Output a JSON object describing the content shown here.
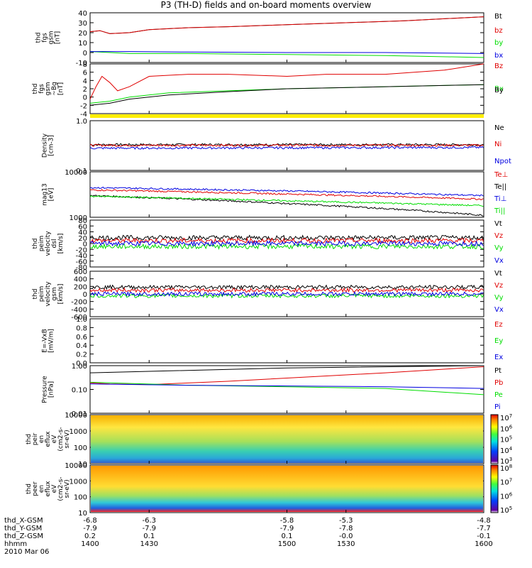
{
  "title": "P3 (TH-D) fields and on-board moments overview",
  "colors": {
    "black": "#000000",
    "red": "#e00000",
    "green": "#00dd00",
    "blue": "#0000e0",
    "yellow": "#ffee00"
  },
  "chart_data": [
    {
      "type": "line",
      "panel": "fgs",
      "ylabel": [
        "thd",
        "fgs",
        "gsm",
        "[nT]"
      ],
      "ylim": [
        -10,
        40
      ],
      "yticks": [
        "40",
        "30",
        "20",
        "10",
        "0",
        "-10"
      ],
      "series": [
        {
          "name": "Bt",
          "color": "#000000",
          "x": [
            1400,
            1405,
            1410,
            1420,
            1430,
            1450,
            1470,
            1500,
            1530,
            1560,
            1600
          ],
          "y": [
            21,
            22,
            19,
            20,
            23,
            25,
            26,
            28,
            30,
            32,
            36
          ]
        },
        {
          "name": "bz",
          "color": "#e00000",
          "x": [
            1400,
            1405,
            1410,
            1420,
            1430,
            1450,
            1470,
            1500,
            1530,
            1560,
            1600
          ],
          "y": [
            21,
            22,
            19,
            20,
            23,
            25,
            26,
            28,
            30,
            32,
            36
          ]
        },
        {
          "name": "by",
          "color": "#00dd00",
          "x": [
            1400,
            1410,
            1420,
            1450,
            1500,
            1550,
            1600
          ],
          "y": [
            1,
            0,
            -1,
            -1,
            -2,
            -3,
            -5
          ]
        },
        {
          "name": "bx",
          "color": "#0000e0",
          "x": [
            1400,
            1410,
            1420,
            1450,
            1500,
            1550,
            1600
          ],
          "y": [
            1,
            1,
            1,
            0.5,
            0,
            0,
            -1
          ]
        }
      ]
    },
    {
      "type": "line",
      "panel": "fgs-dsl",
      "ylabel": [
        "thd",
        "fgs",
        "gsm",
        "~Bg",
        "[nT]"
      ],
      "ylim": [
        -4,
        8
      ],
      "yticks": [
        "8",
        "6",
        "4",
        "2",
        "0",
        "-2",
        "-4"
      ],
      "series": [
        {
          "name": "Bz",
          "color": "#e00000",
          "x": [
            1400,
            1403,
            1406,
            1410,
            1414,
            1420,
            1430,
            1450,
            1470,
            1500,
            1520,
            1550,
            1580,
            1600
          ],
          "y": [
            -0.5,
            2.5,
            5,
            3.5,
            1.5,
            2.5,
            5,
            5.5,
            5.5,
            5,
            5.5,
            5.5,
            6.5,
            8
          ]
        },
        {
          "name": "Bx",
          "color": "#00dd00",
          "x": [
            1400,
            1410,
            1420,
            1440,
            1470,
            1500,
            1550,
            1600
          ],
          "y": [
            -1.5,
            -1,
            0,
            1,
            1.5,
            2,
            2.5,
            3
          ]
        },
        {
          "name": "By",
          "color": "#000000",
          "x": [
            1400,
            1410,
            1415,
            1420,
            1440,
            1470,
            1500,
            1550,
            1600
          ],
          "y": [
            -2,
            -1.5,
            -1,
            -0.5,
            0.5,
            1.3,
            2,
            2.5,
            3
          ]
        }
      ]
    },
    {
      "type": "line",
      "panel": "density",
      "ylabel": [
        "Density",
        "[cm-3]"
      ],
      "ylim": [
        0.1,
        1.0
      ],
      "yscale": "log",
      "yticks": [
        "1.0",
        "0.1"
      ],
      "series": [
        {
          "name": "Ne",
          "color": "#000000",
          "x": [
            1400,
            1600
          ],
          "y": [
            0.33,
            0.33
          ]
        },
        {
          "name": "Ni",
          "color": "#e00000",
          "x": [
            1400,
            1600
          ],
          "y": [
            0.32,
            0.32
          ]
        },
        {
          "name": "Npot",
          "color": "#0000e0",
          "x": [
            1400,
            1600
          ],
          "y": [
            0.28,
            0.29
          ]
        }
      ]
    },
    {
      "type": "line",
      "panel": "temperature",
      "ylabel": [
        "mag13",
        "[eV]"
      ],
      "ylim": [
        1000,
        10000
      ],
      "yscale": "log",
      "yticks": [
        "10000",
        "1000"
      ],
      "series": [
        {
          "name": "Te⊥",
          "color": "#e00000",
          "x": [
            1400,
            1600
          ],
          "y": [
            4000,
            2500
          ]
        },
        {
          "name": "Te||",
          "color": "#000000",
          "x": [
            1400,
            1500,
            1600
          ],
          "y": [
            3000,
            2000,
            1100
          ]
        },
        {
          "name": "Ti⊥",
          "color": "#0000e0",
          "x": [
            1400,
            1500,
            1600
          ],
          "y": [
            4500,
            3800,
            3000
          ]
        },
        {
          "name": "Ti||",
          "color": "#00dd00",
          "x": [
            1400,
            1500,
            1600
          ],
          "y": [
            2900,
            2300,
            1800
          ]
        }
      ]
    },
    {
      "type": "line",
      "panel": "velocity-dsl",
      "ylabel": [
        "thd",
        "peim",
        "velocity",
        "dsl",
        "[km/s]"
      ],
      "ylim": [
        -80,
        80
      ],
      "yticks": [
        "80",
        "60",
        "40",
        "20",
        "0",
        "-20",
        "-40",
        "-60",
        "-80"
      ],
      "series": [
        {
          "name": "Vt",
          "color": "#000000",
          "x": [
            1400,
            1600
          ],
          "y": [
            20,
            20
          ]
        },
        {
          "name": "Vz",
          "color": "#e00000",
          "x": [
            1400,
            1600
          ],
          "y": [
            10,
            10
          ]
        },
        {
          "name": "Vy",
          "color": "#00dd00",
          "x": [
            1400,
            1600
          ],
          "y": [
            -10,
            -10
          ]
        },
        {
          "name": "Vx",
          "color": "#0000e0",
          "x": [
            1400,
            1600
          ],
          "y": [
            0,
            0
          ]
        }
      ]
    },
    {
      "type": "line",
      "panel": "velocity-gsm",
      "ylabel": [
        "thd",
        "peim",
        "velocity",
        "gsm",
        "[km/s]"
      ],
      "ylim": [
        -600,
        600
      ],
      "yticks": [
        "600",
        "400",
        "200",
        "0",
        "-200",
        "-400",
        "-600"
      ],
      "series": [
        {
          "name": "Vt",
          "color": "#000000",
          "x": [
            1400,
            1600
          ],
          "y": [
            180,
            180
          ]
        },
        {
          "name": "Vz",
          "color": "#e00000",
          "x": [
            1400,
            1600
          ],
          "y": [
            100,
            100
          ]
        },
        {
          "name": "Vy",
          "color": "#00dd00",
          "x": [
            1400,
            1600
          ],
          "y": [
            -50,
            -50
          ]
        },
        {
          "name": "Vx",
          "color": "#0000e0",
          "x": [
            1400,
            1600
          ],
          "y": [
            0,
            0
          ]
        }
      ]
    },
    {
      "type": "line",
      "panel": "efield",
      "ylabel": [
        "E=-VxB",
        "[mV/m]"
      ],
      "ylim": [
        0,
        1
      ],
      "yticks": [
        "1.0",
        "0.8",
        "0.6",
        "0.4",
        "0.2",
        "0.0"
      ],
      "series": [
        {
          "name": "Ez",
          "color": "#e00000",
          "x": [],
          "y": []
        },
        {
          "name": "Ey",
          "color": "#00dd00",
          "x": [],
          "y": []
        },
        {
          "name": "Ex",
          "color": "#0000e0",
          "x": [],
          "y": []
        }
      ]
    },
    {
      "type": "line",
      "panel": "pressure",
      "ylabel": [
        "Pressure",
        "[nPa]"
      ],
      "ylim": [
        0.01,
        1.0
      ],
      "yscale": "log",
      "yticks": [
        "1.00",
        "0.10",
        "0.01"
      ],
      "series": [
        {
          "name": "Pt",
          "color": "#000000",
          "x": [
            1400,
            1500,
            1600
          ],
          "y": [
            0.5,
            0.8,
            1.0
          ]
        },
        {
          "name": "Pb",
          "color": "#e00000",
          "x": [
            1400,
            1410,
            1430,
            1470,
            1500,
            1550,
            1600
          ],
          "y": [
            0.19,
            0.17,
            0.16,
            0.22,
            0.3,
            0.5,
            0.9
          ]
        },
        {
          "name": "Pe",
          "color": "#00dd00",
          "x": [
            1400,
            1450,
            1500,
            1550,
            1600
          ],
          "y": [
            0.2,
            0.15,
            0.13,
            0.11,
            0.06
          ]
        },
        {
          "name": "Pi",
          "color": "#0000e0",
          "x": [
            1400,
            1450,
            1500,
            1550,
            1600
          ],
          "y": [
            0.17,
            0.15,
            0.14,
            0.13,
            0.11
          ]
        }
      ]
    },
    {
      "type": "heatmap",
      "panel": "ion-spectrogram",
      "ylabel": [
        "thd",
        "peir",
        "en",
        "eflux",
        "eV",
        "(cm2-s-",
        "sr-eV)"
      ],
      "ylim": [
        10,
        10000
      ],
      "yscale": "log",
      "yticks": [
        "10000",
        "1000",
        "100",
        "10"
      ],
      "colorbar": {
        "min": 1000,
        "max": 10000000,
        "ticks": [
          "10^7",
          "10^6",
          "10^5",
          "10^4",
          "10^3"
        ]
      }
    },
    {
      "type": "heatmap",
      "panel": "electron-spectrogram",
      "ylabel": [
        "thd",
        "peer",
        "en",
        "eflux",
        "eV",
        "(cm2-s-",
        "sr-eV)"
      ],
      "ylim": [
        10,
        10000
      ],
      "yscale": "log",
      "yticks": [
        "10000",
        "1000",
        "100",
        "10"
      ],
      "colorbar": {
        "min": 100000,
        "max": 100000000,
        "ticks": [
          "10^8",
          "10^7",
          "10^6",
          "10^5"
        ]
      }
    }
  ],
  "orbit": {
    "labels": [
      "thd_X-GSM",
      "thd_Y-GSM",
      "thd_Z-GSM",
      "hhmm",
      "2010 Mar 06"
    ],
    "x": [
      1400,
      1430,
      1500,
      1530,
      1600
    ],
    "rows": [
      [
        "-6.8",
        "-6.3",
        "-5.8",
        "-5.3",
        "-4.8"
      ],
      [
        "-7.9",
        "-7.9",
        "-7.9",
        "-7.8",
        "-7.7"
      ],
      [
        "0.2",
        "0.1",
        "0.1",
        "-0.0",
        "-0.1"
      ],
      [
        "1400",
        "1430",
        "1500",
        "1530",
        "1600"
      ]
    ]
  }
}
